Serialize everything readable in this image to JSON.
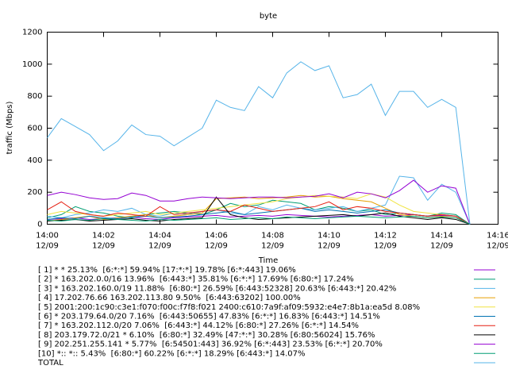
{
  "chart_data": {
    "type": "line",
    "title": "byte",
    "x_label": "Time",
    "y_label": "traffic (Mbps)",
    "x": [
      0,
      0.5,
      1,
      1.5,
      2,
      2.5,
      3,
      3.5,
      4,
      4.5,
      5,
      5.5,
      6,
      6.5,
      7,
      7.5,
      8,
      8.5,
      9,
      9.5,
      10,
      10.5,
      11,
      11.5,
      12,
      12.5,
      13,
      13.5,
      14,
      14.5,
      15
    ],
    "xlim": [
      0,
      16
    ],
    "xticks": [
      {
        "value": 0,
        "label": "14:00"
      },
      {
        "value": 2,
        "label": "14:02"
      },
      {
        "value": 4,
        "label": "14:04"
      },
      {
        "value": 6,
        "label": "14:06"
      },
      {
        "value": 8,
        "label": "14:08"
      },
      {
        "value": 10,
        "label": "14:10"
      },
      {
        "value": 12,
        "label": "14:12"
      },
      {
        "value": 14,
        "label": "14:14"
      },
      {
        "value": 16,
        "label": "14:16"
      }
    ],
    "xtick_dates": [
      "12/09",
      "12/09",
      "12/09",
      "12/09",
      "12/09",
      "12/09",
      "12/09",
      "12/09",
      "12/09"
    ],
    "ylim": [
      0,
      1200
    ],
    "yticks": [
      0,
      200,
      400,
      600,
      800,
      1000,
      1200
    ],
    "series": [
      {
        "name": "[ 1] * * 25.13%  [6:*:*] 59.94% [17:*:*] 19.78% [6:*:443] 19.06%",
        "color": "#9400d3",
        "values": [
          30,
          35,
          40,
          30,
          35,
          40,
          45,
          35,
          30,
          40,
          45,
          50,
          55,
          45,
          50,
          55,
          50,
          60,
          55,
          50,
          45,
          50,
          55,
          60,
          50,
          55,
          60,
          50,
          55,
          50,
          0
        ]
      },
      {
        "name": "[ 2] * 163.202.0.0/16 13.96%  [6:443:*] 35.81% [6:*:*] 17.69% [6:80:*] 17.24%",
        "color": "#009e73",
        "values": [
          40,
          60,
          110,
          80,
          70,
          50,
          40,
          60,
          70,
          80,
          70,
          60,
          90,
          130,
          110,
          120,
          150,
          140,
          130,
          90,
          110,
          100,
          80,
          90,
          60,
          70,
          60,
          50,
          70,
          60,
          0
        ]
      },
      {
        "name": "[ 3] * 163.202.160.0/19 11.88%  [6:80:*] 26.59% [6:443:52328] 20.63% [6:443:*] 20.42%",
        "color": "#56b4e9",
        "values": [
          50,
          40,
          60,
          70,
          90,
          80,
          100,
          60,
          50,
          70,
          60,
          80,
          90,
          70,
          60,
          110,
          90,
          120,
          100,
          90,
          100,
          110,
          80,
          100,
          120,
          300,
          290,
          150,
          250,
          200,
          0
        ]
      },
      {
        "name": "[ 4] 17.202.76.66 163.202.113.80 9.50%  [6:443:63202] 100.00%",
        "color": "#e69f00",
        "values": [
          20,
          30,
          40,
          50,
          30,
          40,
          50,
          60,
          40,
          50,
          60,
          70,
          160,
          165,
          170,
          160,
          165,
          170,
          180,
          170,
          175,
          160,
          150,
          140,
          100,
          60,
          50,
          40,
          50,
          40,
          0
        ]
      },
      {
        "name": "[ 5] 2001:200:1c90:c3e1:f070:f00c:f7f8:f021 2400:c610:7a9f:af09:5932:e4e7:8b1a:ea5d 8.08%",
        "color": "#f0e442",
        "values": [
          60,
          80,
          70,
          60,
          50,
          60,
          70,
          80,
          60,
          70,
          80,
          90,
          100,
          110,
          120,
          130,
          140,
          160,
          170,
          180,
          175,
          170,
          160,
          190,
          170,
          120,
          80,
          70,
          60,
          50,
          0
        ]
      },
      {
        "name": "[ 6] * 203.179.64.0/20 7.16%  [6:443:50655] 47.83% [6:*:*] 16.83% [6:443:*] 14.51%",
        "color": "#0072b2",
        "values": [
          30,
          40,
          35,
          50,
          40,
          35,
          45,
          50,
          40,
          45,
          50,
          60,
          70,
          80,
          60,
          70,
          80,
          90,
          100,
          80,
          90,
          80,
          70,
          80,
          90,
          70,
          60,
          50,
          60,
          50,
          0
        ]
      },
      {
        "name": "[ 7] * 163.202.112.0/20 7.06%  [6:443:*] 44.12% [6:80:*] 27.26% [6:*:*] 14.54%",
        "color": "#e51e10",
        "values": [
          90,
          140,
          80,
          60,
          50,
          70,
          60,
          50,
          110,
          60,
          70,
          80,
          90,
          80,
          120,
          100,
          80,
          90,
          100,
          110,
          140,
          90,
          110,
          100,
          80,
          70,
          60,
          50,
          60,
          50,
          0
        ]
      },
      {
        "name": "[ 8] 203.179.72.0/21 * 6.10%  [6:80:*] 32.49% [47:*:*] 30.28% [6:80:56024] 15.76%",
        "color": "#000000",
        "values": [
          20,
          25,
          30,
          20,
          25,
          30,
          35,
          25,
          20,
          30,
          35,
          40,
          170,
          60,
          40,
          30,
          35,
          40,
          45,
          50,
          55,
          60,
          50,
          60,
          70,
          50,
          40,
          30,
          40,
          30,
          0
        ]
      },
      {
        "name": "[ 9] 202.251.255.141 * 5.77%  [6:54501:443] 36.92% [6:*:443] 23.53% [6:*:*] 20.70%",
        "color": "#9400d3",
        "values": [
          180,
          200,
          185,
          165,
          155,
          160,
          195,
          180,
          145,
          145,
          160,
          170,
          165,
          160,
          165,
          170,
          170,
          165,
          170,
          175,
          190,
          165,
          200,
          190,
          165,
          210,
          275,
          200,
          240,
          225,
          0
        ]
      },
      {
        "name": "[10] *:: *:: 5.43%  [6:80:*] 60.22% [6:*:*] 18.29% [6:443:*] 14.07%",
        "color": "#009e73",
        "values": [
          25,
          20,
          30,
          25,
          35,
          30,
          25,
          20,
          30,
          25,
          30,
          35,
          40,
          30,
          35,
          40,
          35,
          45,
          40,
          35,
          40,
          45,
          50,
          45,
          40,
          45,
          50,
          40,
          45,
          40,
          0
        ]
      },
      {
        "name": "TOTAL",
        "color": "#56b4e9",
        "values": [
          540,
          660,
          610,
          560,
          460,
          520,
          620,
          560,
          550,
          490,
          545,
          600,
          775,
          730,
          710,
          860,
          790,
          945,
          1015,
          960,
          990,
          790,
          810,
          875,
          680,
          830,
          830,
          730,
          780,
          730,
          0
        ]
      }
    ]
  }
}
